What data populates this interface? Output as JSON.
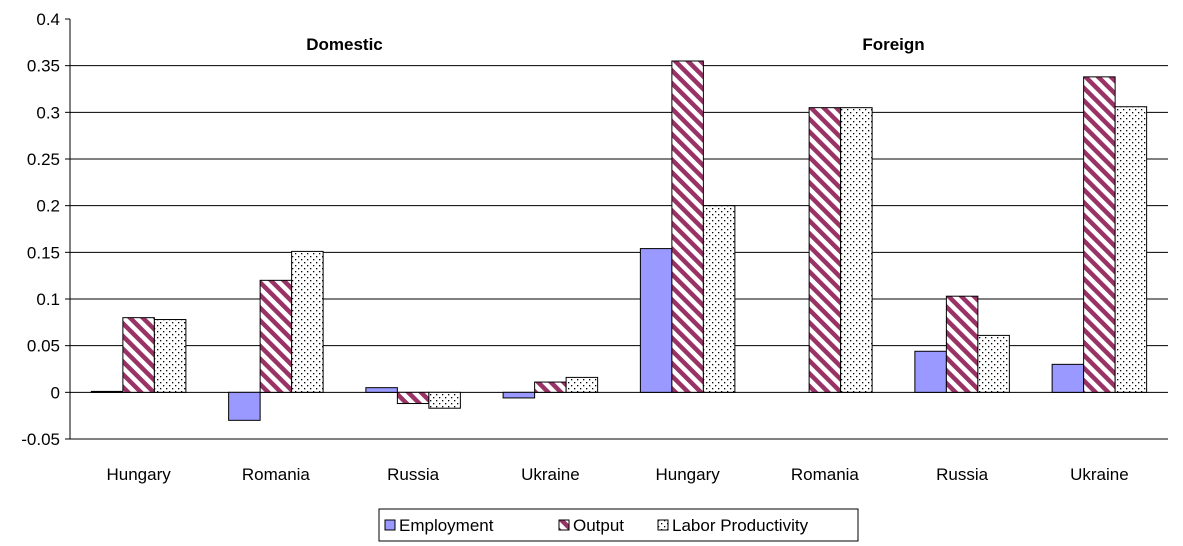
{
  "chart_data": {
    "type": "bar",
    "categories": [
      "Hungary",
      "Romania",
      "Russia",
      "Ukraine",
      "Hungary",
      "Romania",
      "Russia",
      "Ukraine"
    ],
    "groups": [
      {
        "label": "Domestic"
      },
      {
        "label": "Foreign"
      }
    ],
    "series": [
      {
        "name": "Employment",
        "values": [
          0.001,
          -0.03,
          0.005,
          -0.006,
          0.154,
          0.0,
          0.044,
          0.03
        ],
        "color": "#9999ff",
        "pattern": "solid"
      },
      {
        "name": "Output",
        "values": [
          0.08,
          0.12,
          -0.012,
          0.011,
          0.355,
          0.305,
          0.103,
          0.338
        ],
        "color": "#993366",
        "pattern": "diagonal-stripes"
      },
      {
        "name": "Labor Productivity",
        "values": [
          0.078,
          0.151,
          -0.017,
          0.016,
          0.2,
          0.305,
          0.061,
          0.306
        ],
        "color": "#ffffff",
        "pattern": "dots"
      }
    ],
    "yticks": [
      "0.4",
      "0.35",
      "0.3",
      "0.25",
      "0.2",
      "0.15",
      "0.1",
      "0.05",
      "0",
      "-0.05"
    ],
    "ylim": [
      -0.05,
      0.4
    ],
    "grid": true,
    "legend": "bottom",
    "xlabel": "",
    "ylabel": "",
    "title": ""
  }
}
